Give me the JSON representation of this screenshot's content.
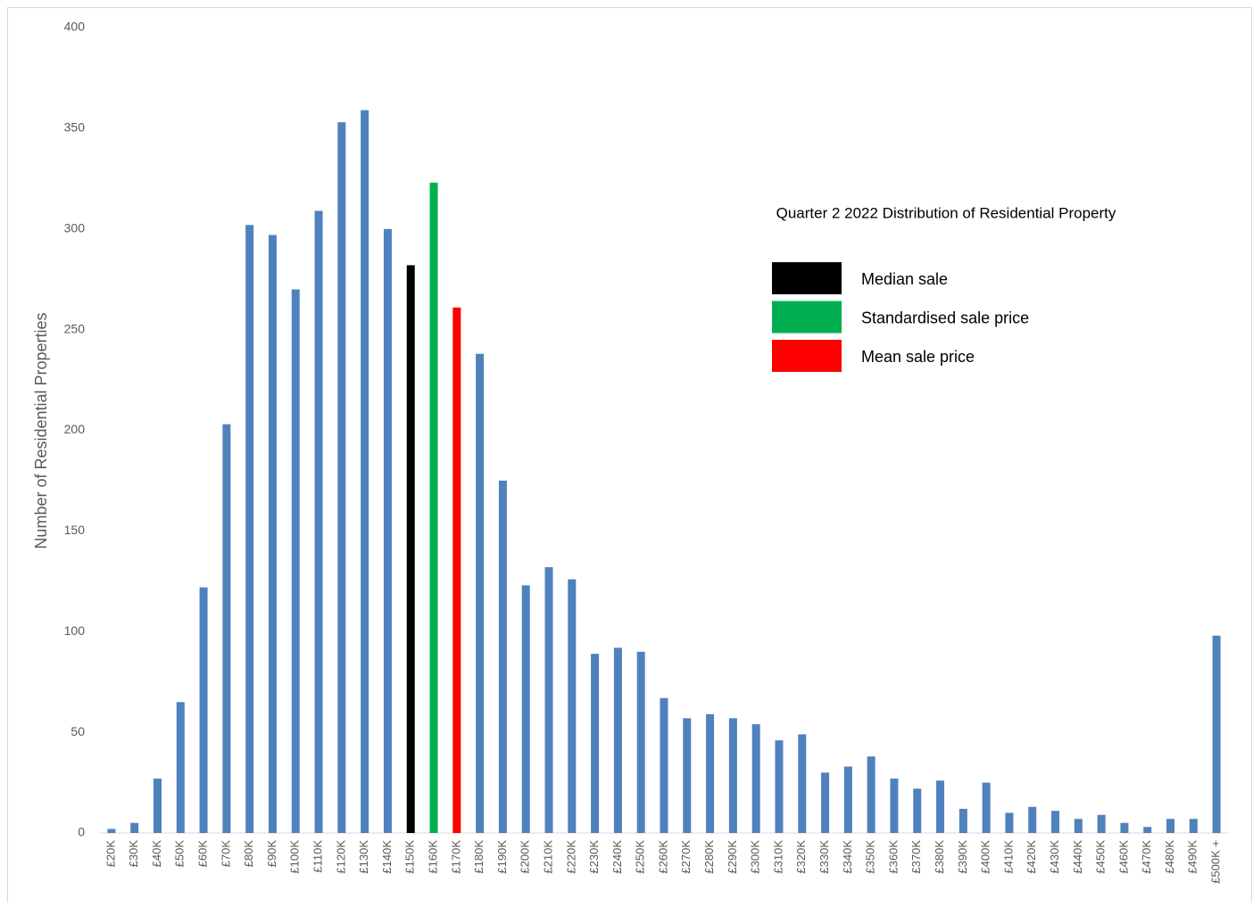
{
  "chart_data": {
    "type": "bar",
    "title": "Quarter 2 2022 Distribution of Residential Property",
    "y_label": "Number of Residential Properties",
    "categories": [
      "£20K",
      "£30K",
      "£40K",
      "£50K",
      "£60K",
      "£70K",
      "£80K",
      "£90K",
      "£100K",
      "£110K",
      "£120K",
      "£130K",
      "£140K",
      "£150K",
      "£160K",
      "£170K",
      "£180K",
      "£190K",
      "£200K",
      "£210K",
      "£220K",
      "£230K",
      "£240K",
      "£250K",
      "£260K",
      "£270K",
      "£280K",
      "£290K",
      "£300K",
      "£310K",
      "£320K",
      "£330K",
      "£340K",
      "£350K",
      "£360K",
      "£370K",
      "£380K",
      "£390K",
      "£400K",
      "£410K",
      "£420K",
      "£430K",
      "£440K",
      "£450K",
      "£460K",
      "£470K",
      "£480K",
      "£490K",
      "£500K +"
    ],
    "values": [
      2,
      5,
      27,
      65,
      122,
      203,
      302,
      297,
      270,
      309,
      353,
      359,
      300,
      282,
      323,
      261,
      238,
      175,
      123,
      132,
      126,
      89,
      92,
      90,
      67,
      57,
      59,
      57,
      54,
      46,
      49,
      30,
      33,
      38,
      27,
      22,
      26,
      12,
      25,
      10,
      13,
      11,
      7,
      9,
      5,
      3,
      7,
      7,
      98
    ],
    "colors": [
      "#4f81bd",
      "#4f81bd",
      "#4f81bd",
      "#4f81bd",
      "#4f81bd",
      "#4f81bd",
      "#4f81bd",
      "#4f81bd",
      "#4f81bd",
      "#4f81bd",
      "#4f81bd",
      "#4f81bd",
      "#4f81bd",
      "#000000",
      "#00b050",
      "#ff0000",
      "#4f81bd",
      "#4f81bd",
      "#4f81bd",
      "#4f81bd",
      "#4f81bd",
      "#4f81bd",
      "#4f81bd",
      "#4f81bd",
      "#4f81bd",
      "#4f81bd",
      "#4f81bd",
      "#4f81bd",
      "#4f81bd",
      "#4f81bd",
      "#4f81bd",
      "#4f81bd",
      "#4f81bd",
      "#4f81bd",
      "#4f81bd",
      "#4f81bd",
      "#4f81bd",
      "#4f81bd",
      "#4f81bd",
      "#4f81bd",
      "#4f81bd",
      "#4f81bd",
      "#4f81bd",
      "#4f81bd",
      "#4f81bd",
      "#4f81bd",
      "#4f81bd",
      "#4f81bd",
      "#4f81bd"
    ],
    "legend": [
      {
        "name": "Median sale",
        "color": "#000000"
      },
      {
        "name": "Standardised sale price",
        "color": "#00b050"
      },
      {
        "name": "Mean sale price",
        "color": "#ff0000"
      }
    ],
    "ylim": [
      0,
      400
    ],
    "yticks": [
      0,
      50,
      100,
      150,
      200,
      250,
      300,
      350,
      400
    ],
    "grid": false
  }
}
